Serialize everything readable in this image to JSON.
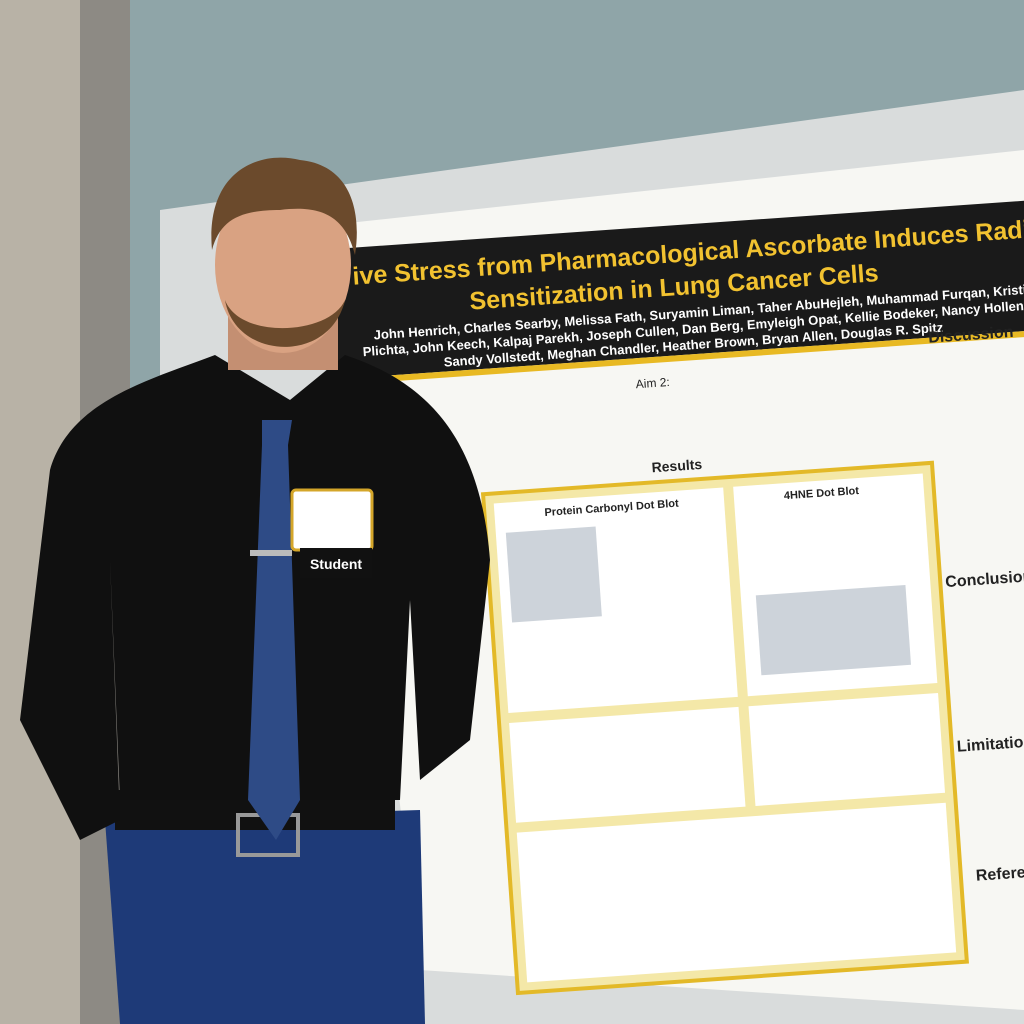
{
  "poster": {
    "title_lines": [
      "ive Stress from Pharmacological Ascorbate Induces Radio-",
      "Sensitization in Lung Cancer Cells"
    ],
    "authors": [
      "John Henrich, Charles Searby, Melissa Fath, Suryamin Liman, Taher AbuHejleh, Muhammad Furqan, Kristin",
      "Plichta, John Keech, Kalpaj Parekh, Joseph Cullen, Dan Berg, Emyleigh Opat, Kellie Bodeker, Nancy Hollenbeck",
      "Sandy Vollstedt, Meghan Chandler, Heather Brown, Bryan Allen, Douglas R. Spitz"
    ],
    "aim": "Aim 2:",
    "results": "Results",
    "figures": [
      "Protein Carbonyl Dot Blot",
      "4HNE Dot Blot"
    ],
    "side_headings": [
      "Discussion",
      "Conclusion",
      "Limitations",
      "Reference"
    ]
  },
  "badge": "Student"
}
